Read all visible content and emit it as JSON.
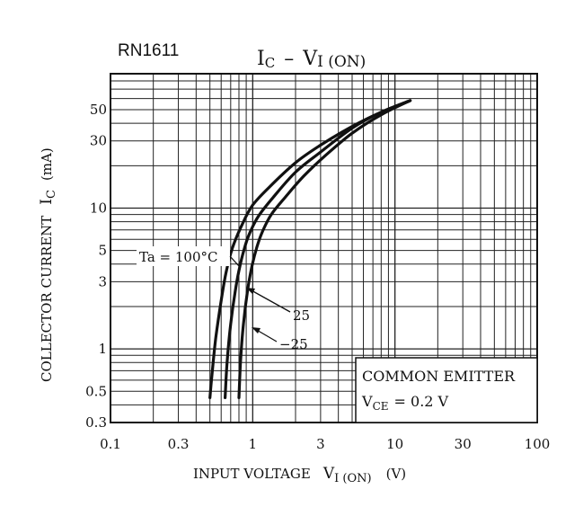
{
  "part_number": "RN1611",
  "chart_data": {
    "type": "line",
    "title": {
      "main": "I",
      "main_sub": "C",
      "dash": "–",
      "var": "V",
      "var_sub": "I (ON)"
    },
    "xlabel": {
      "text": "INPUT VOLTAGE",
      "var": "V",
      "var_sub": "I (ON)",
      "unit": "(V)"
    },
    "ylabel": {
      "text": "COLLECTOR CURRENT",
      "var": "I",
      "var_sub": "C",
      "unit": "(mA)"
    },
    "x_scale": "log",
    "y_scale": "log",
    "xlim": [
      0.1,
      100
    ],
    "ylim": [
      0.3,
      90
    ],
    "x_ticks": [
      {
        "value": 0.1,
        "label": "0.1"
      },
      {
        "value": 0.3,
        "label": "0.3"
      },
      {
        "value": 1,
        "label": "1"
      },
      {
        "value": 3,
        "label": "3"
      },
      {
        "value": 10,
        "label": "10"
      },
      {
        "value": 30,
        "label": "30"
      },
      {
        "value": 100,
        "label": "100"
      }
    ],
    "y_ticks": [
      {
        "value": 0.3,
        "label": "0.3"
      },
      {
        "value": 0.5,
        "label": "0.5"
      },
      {
        "value": 1,
        "label": "1"
      },
      {
        "value": 3,
        "label": "3"
      },
      {
        "value": 5,
        "label": "5"
      },
      {
        "value": 10,
        "label": "10"
      },
      {
        "value": 30,
        "label": "30"
      },
      {
        "value": 50,
        "label": "50"
      }
    ],
    "grid": true,
    "series": [
      {
        "name": "Ta = 100°C",
        "label": "Ta = 100°C",
        "x": [
          0.5,
          0.52,
          0.55,
          0.6,
          0.65,
          0.72,
          0.85,
          1.0,
          1.3,
          2.0,
          3.0,
          5.0,
          8.0,
          12.8
        ],
        "y": [
          0.45,
          0.7,
          1.2,
          2.2,
          3.5,
          5.2,
          7.8,
          10.5,
          14,
          21,
          28,
          38,
          48,
          58
        ]
      },
      {
        "name": "25",
        "label": "25",
        "x": [
          0.64,
          0.66,
          0.7,
          0.75,
          0.8,
          0.87,
          0.95,
          1.1,
          1.4,
          2.0,
          3.0,
          5.0,
          8.0,
          12.8
        ],
        "y": [
          0.45,
          0.8,
          1.5,
          2.5,
          3.6,
          5.1,
          6.6,
          8.8,
          12,
          18,
          25,
          37,
          48,
          58
        ]
      },
      {
        "name": "−25",
        "label": "−25",
        "x": [
          0.8,
          0.82,
          0.86,
          0.92,
          0.99,
          1.07,
          1.17,
          1.35,
          1.7,
          2.3,
          3.3,
          5.0,
          8.0,
          12.8
        ],
        "y": [
          0.45,
          0.8,
          1.5,
          2.6,
          3.9,
          5.3,
          6.8,
          9.0,
          12,
          17,
          24,
          34,
          46,
          58
        ]
      }
    ],
    "legend_box": {
      "position": "bottom-right",
      "line1": "COMMON EMITTER",
      "line2_var": "V",
      "line2_sub": "CE",
      "line2_value": "= 0.2 V"
    }
  }
}
